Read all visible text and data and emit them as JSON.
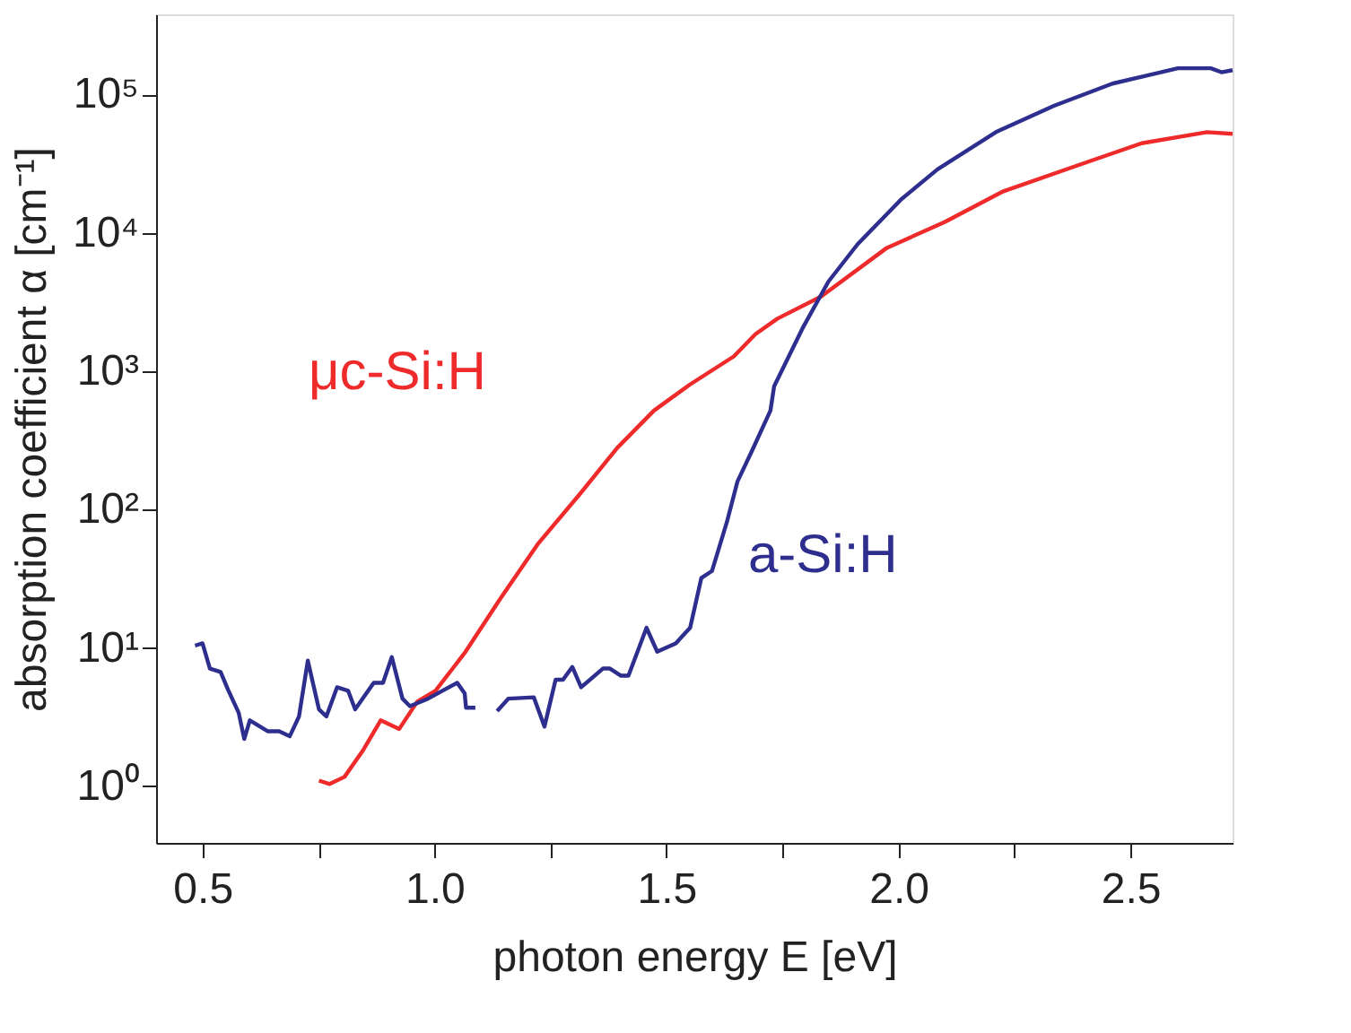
{
  "chart_data": {
    "type": "line",
    "xlabel": "photon energy E [eV]",
    "ylabel": "absorption coefficient α [cm⁻¹]",
    "xlim": [
      0.4,
      2.72
    ],
    "xticks": [
      0.5,
      {
        "value": 0.75,
        "label": null
      },
      {
        "value": 1,
        "label": "1.0"
      },
      {
        "value": 1.25,
        "label": null
      },
      1.5,
      {
        "value": 1.75,
        "label": null
      },
      {
        "value": 2,
        "label": "2.0"
      },
      {
        "value": 2.25,
        "label": null
      },
      2.5
    ],
    "ylim": [
      0.39,
      380000
    ],
    "yticks": [
      {
        "value": 1,
        "label": "10⁰"
      },
      {
        "value": 10,
        "label": "10¹"
      },
      {
        "value": 100,
        "label": "10²"
      },
      {
        "value": 1000,
        "label": "10³"
      },
      {
        "value": 10000,
        "label": "10⁴"
      },
      {
        "value": 100000,
        "label": "10⁵"
      }
    ],
    "log": "y",
    "grid": false,
    "legend": false,
    "marker": "none",
    "line_style": "solid",
    "series": [
      {
        "name": "μc-Si:H",
        "color": "#ee2a2a",
        "x": [
          0.751,
          0.774,
          0.806,
          0.845,
          0.884,
          0.924,
          0.963,
          1.002,
          1.065,
          1.143,
          1.222,
          1.316,
          1.394,
          1.473,
          1.55,
          1.645,
          1.692,
          1.739,
          1.833,
          1.975,
          2.1,
          2.226,
          2.383,
          2.524,
          2.665,
          2.72
        ],
        "values": [
          1.1,
          1.04,
          1.17,
          1.8,
          3.0,
          2.6,
          4.1,
          4.9,
          9.2,
          23,
          56,
          133,
          280,
          520,
          800,
          1280,
          1860,
          2400,
          3470,
          7800,
          12000,
          20000,
          30500,
          44500,
          53500,
          52000
        ]
      },
      {
        "name": "a-Si:H",
        "color": "#2e2e8f",
        "x": [
          0.484,
          0.5,
          0.516,
          0.539,
          0.555,
          0.578,
          0.59,
          0.602,
          0.641,
          0.665,
          0.688,
          0.708,
          0.727,
          0.751,
          0.767,
          0.79,
          0.814,
          0.829,
          0.869,
          0.889,
          0.908,
          0.931,
          0.947,
          0.986,
          1.017,
          1.049,
          1.065,
          1.068,
          1.088,
          1.11,
          1.135,
          1.159,
          1.214,
          1.237,
          1.261,
          1.277,
          1.297,
          1.316,
          1.363,
          1.378,
          1.402,
          1.418,
          1.457,
          1.48,
          1.52,
          1.551,
          1.575,
          1.598,
          1.63,
          1.653,
          1.684,
          1.724,
          1.732,
          1.795,
          1.849,
          1.912,
          2.006,
          2.084,
          2.21,
          2.335,
          2.461,
          2.602,
          2.673,
          2.696,
          2.72
        ],
        "values": [
          10.4,
          10.8,
          7.1,
          6.7,
          5.0,
          3.4,
          2.2,
          3.0,
          2.5,
          2.5,
          2.3,
          3.2,
          8.1,
          3.6,
          3.2,
          5.2,
          4.9,
          3.6,
          5.6,
          5.6,
          8.6,
          4.3,
          3.8,
          4.3,
          4.9,
          5.6,
          4.7,
          3.7,
          3.7,
          null,
          3.5,
          4.3,
          4.4,
          2.7,
          5.9,
          5.9,
          7.3,
          5.2,
          7.1,
          7.1,
          6.3,
          6.3,
          14,
          9.4,
          10.8,
          14,
          32,
          36,
          81,
          160,
          265,
          520,
          780,
          2100,
          4450,
          8300,
          17500,
          28800,
          53500,
          83000,
          120000,
          155000,
          155000,
          145000,
          150000
        ]
      }
    ]
  }
}
